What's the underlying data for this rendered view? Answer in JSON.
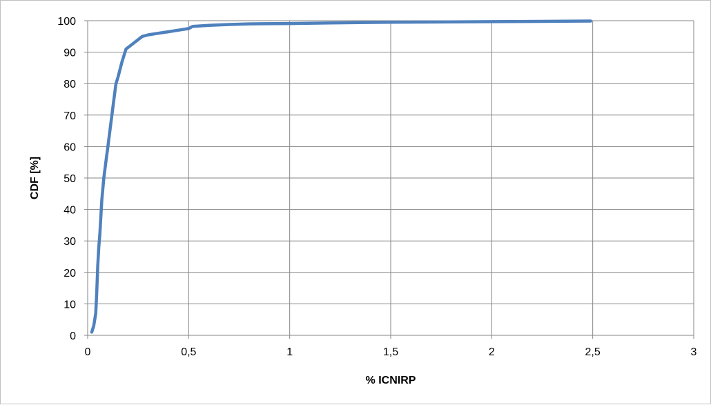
{
  "chart_data": {
    "type": "line",
    "title": "",
    "xlabel": "% ICNIRP",
    "ylabel": "CDF [%]",
    "xlim": [
      0,
      3
    ],
    "ylim": [
      0,
      100
    ],
    "x_ticks": [
      0,
      0.5,
      1,
      1.5,
      2,
      2.5,
      3
    ],
    "x_tick_labels": [
      "0",
      "0,5",
      "1",
      "1,5",
      "2",
      "2,5",
      "3"
    ],
    "y_ticks": [
      0,
      10,
      20,
      30,
      40,
      50,
      60,
      70,
      80,
      90,
      100
    ],
    "y_tick_labels": [
      "0",
      "10",
      "20",
      "30",
      "40",
      "50",
      "60",
      "70",
      "80",
      "90",
      "100"
    ],
    "grid": true,
    "legend": "none",
    "series": [
      {
        "color": "#4f81bd",
        "x": [
          0.02,
          0.03,
          0.04,
          0.045,
          0.05,
          0.055,
          0.06,
          0.07,
          0.08,
          0.09,
          0.1,
          0.11,
          0.12,
          0.13,
          0.14,
          0.15,
          0.17,
          0.19,
          0.21,
          0.25,
          0.27,
          0.3,
          0.35,
          0.4,
          0.45,
          0.5,
          0.52,
          0.6,
          0.7,
          0.8,
          1.0,
          1.2,
          1.5,
          2.0,
          2.49
        ],
        "y": [
          1,
          3,
          7,
          14,
          22,
          28,
          32,
          43,
          50,
          55,
          60,
          65,
          70,
          75,
          80,
          82,
          87,
          91,
          92,
          94,
          95,
          95.5,
          96,
          96.5,
          97,
          97.5,
          98.2,
          98.5,
          98.8,
          99,
          99.1,
          99.3,
          99.5,
          99.7,
          99.9
        ]
      }
    ]
  }
}
